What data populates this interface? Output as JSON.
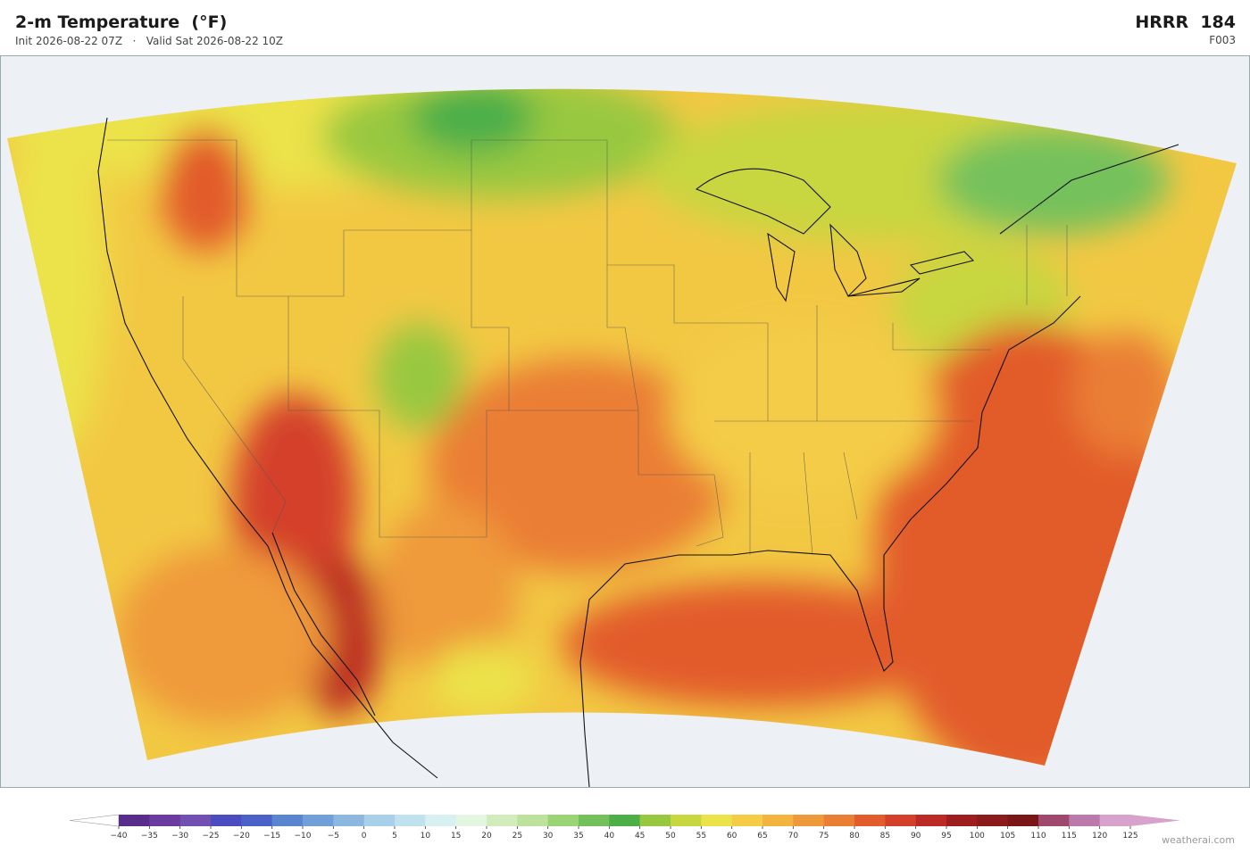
{
  "header": {
    "title": "2-m Temperature  (°F)",
    "subtitle": "Init 2026-08-22 07Z   ·   Valid Sat 2026-08-22 10Z",
    "model": "HRRR  184",
    "forecast_hour": "F003"
  },
  "colorbar": {
    "ticks": [
      {
        "value": -40,
        "label": "−40"
      },
      {
        "value": -35,
        "label": "−35"
      },
      {
        "value": -30,
        "label": "−30"
      },
      {
        "value": -25,
        "label": "−25"
      },
      {
        "value": -20,
        "label": "−20"
      },
      {
        "value": -15,
        "label": "−15"
      },
      {
        "value": -10,
        "label": "−10"
      },
      {
        "value": -5,
        "label": "−5"
      },
      0,
      5,
      10,
      15,
      20,
      25,
      30,
      35,
      40,
      45,
      50,
      55,
      60,
      65,
      70,
      75,
      80,
      85,
      90,
      95,
      100,
      105,
      110,
      115,
      120,
      125
    ],
    "colors": [
      "#5a2d8c",
      "#6c3b9f",
      "#7150b2",
      "#4a4cc0",
      "#4a62c8",
      "#5a86d0",
      "#70a0d8",
      "#8cb8e0",
      "#a8d0e8",
      "#c0e2ef",
      "#d8f0f2",
      "#e4f5e2",
      "#d2ecbc",
      "#bde29c",
      "#9ad474",
      "#74c15c",
      "#4caf48",
      "#98c840",
      "#c8d640",
      "#ece24a",
      "#f4cc46",
      "#f2b43f",
      "#ef9a3a",
      "#ea7e35",
      "#e25c2c",
      "#d4402a",
      "#bb2a24",
      "#9e1e20",
      "#8a1a1c",
      "#7a1618",
      "#a0496f",
      "#bb7aab",
      "#d7a2cb"
    ],
    "under": "#ffffff",
    "over": "#d7a2cb"
  },
  "watermark": "weatherai.com"
}
